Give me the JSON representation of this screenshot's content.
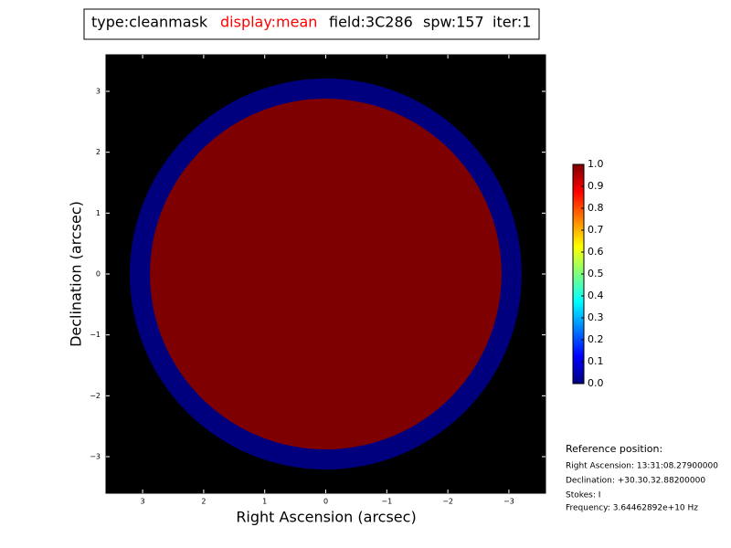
{
  "chart_data": {
    "type": "image",
    "title_parts": [
      {
        "text": "type:cleanmask",
        "color": "#000000"
      },
      {
        "text": "display:mean",
        "color": "#ff0000"
      },
      {
        "text": "field:3C286",
        "color": "#000000"
      },
      {
        "text": "spw:157",
        "color": "#000000"
      },
      {
        "text": "iter:1",
        "color": "#000000"
      }
    ],
    "xlabel": "Right Ascension (arcsec)",
    "ylabel": "Declination (arcsec)",
    "xlim": [
      3.6,
      -3.6
    ],
    "ylim": [
      -3.6,
      3.6
    ],
    "xticks": [
      3,
      2,
      1,
      0,
      {
        "value": -1,
        "label": "−1"
      },
      {
        "value": -2,
        "label": "−2"
      },
      {
        "value": -3,
        "label": "−3"
      }
    ],
    "yticks": [
      {
        "value": -3,
        "label": "−3"
      },
      {
        "value": -2,
        "label": "−2"
      },
      {
        "value": -1,
        "label": "−1"
      },
      0,
      1,
      2,
      3
    ],
    "background": "#000000",
    "shapes": [
      {
        "radius": 3.21,
        "value": 0,
        "color": "#00007f"
      },
      {
        "radius": 2.88,
        "value": 1,
        "color": "#7f0000"
      }
    ],
    "colorbar": {
      "lim": [
        0,
        1
      ],
      "ticks": [
        {
          "value": 0,
          "label": "0.0"
        },
        {
          "value": 0.1,
          "label": "0.1"
        },
        {
          "value": 0.2,
          "label": "0.2"
        },
        {
          "value": 0.3,
          "label": "0.3"
        },
        {
          "value": 0.4,
          "label": "0.4"
        },
        {
          "value": 0.5,
          "label": "0.5"
        },
        {
          "value": 0.6,
          "label": "0.6"
        },
        {
          "value": 0.7,
          "label": "0.7"
        },
        {
          "value": 0.8,
          "label": "0.8"
        },
        {
          "value": 0.9,
          "label": "0.9"
        },
        {
          "value": 1,
          "label": "1.0"
        }
      ],
      "colors": [
        "#00007f",
        "#0000ff",
        "#007fff",
        "#00ffff",
        "#7fff7f",
        "#ffff00",
        "#ff7f00",
        "#ff0000",
        "#7f0000"
      ]
    },
    "reference": {
      "title": "Reference position:",
      "lines": [
        "Right Ascension: 13:31:08.27900000",
        "Declination: +30.30.32.88200000",
        "Stokes: I",
        "Frequency: 3.64462892e+10 Hz"
      ]
    }
  }
}
